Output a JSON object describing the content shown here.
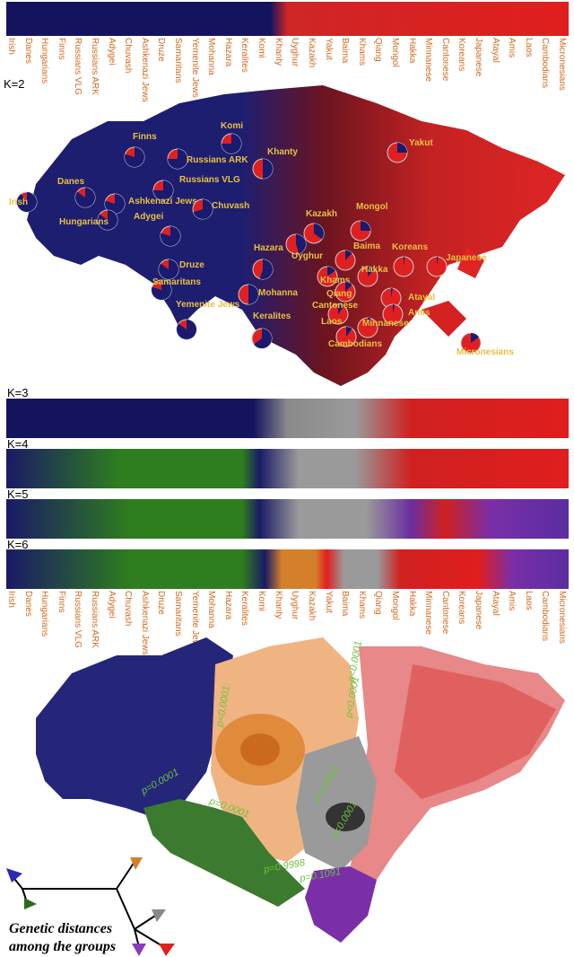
{
  "top_labels": [
    "Irish",
    "Danes",
    "Hungarians",
    "Finns",
    "Russians VLG",
    "Russians ARK",
    "Adygei",
    "Chuvash",
    "Ashkenazi Jews",
    "Druze",
    "Samaritans",
    "Yemenite Jews",
    "Mohanna",
    "Hazara",
    "Keralites",
    "Komi",
    "Khanty",
    "Uyghur",
    "Kazakh",
    "Yakut",
    "Baima",
    "Khams",
    "Qiang",
    "Mongol",
    "Hakka",
    "Minnanese",
    "Cantonese",
    "Koreans",
    "Japanese",
    "Atayal",
    "Amis",
    "Laos",
    "Cambodians",
    "Micronesians"
  ],
  "k_labels": {
    "k2": "K=2",
    "k3": "K=3",
    "k4": "K=4",
    "k5": "K=5",
    "k6": "K=6"
  },
  "pie_labels": [
    {
      "name": "Finns"
    },
    {
      "name": "Komi"
    },
    {
      "name": "Russians ARK"
    },
    {
      "name": "Khanty"
    },
    {
      "name": "Yakut"
    },
    {
      "name": "Danes"
    },
    {
      "name": "Russians VLG"
    },
    {
      "name": "Irish"
    },
    {
      "name": "Ashkenazi Jews"
    },
    {
      "name": "Chuvash"
    },
    {
      "name": "Adygei"
    },
    {
      "name": "Hungarians"
    },
    {
      "name": "Kazakh"
    },
    {
      "name": "Mongol"
    },
    {
      "name": "Uyghur"
    },
    {
      "name": "Hazara"
    },
    {
      "name": "Baima"
    },
    {
      "name": "Koreans"
    },
    {
      "name": "Japanese"
    },
    {
      "name": "Druze"
    },
    {
      "name": "Samaritans"
    },
    {
      "name": "Khams"
    },
    {
      "name": "Hakka"
    },
    {
      "name": "Mohanna"
    },
    {
      "name": "Qiang"
    },
    {
      "name": "Cantonese"
    },
    {
      "name": "Atayal"
    },
    {
      "name": "Laos"
    },
    {
      "name": "Amis"
    },
    {
      "name": "Yemenite Jews"
    },
    {
      "name": "Minnanese"
    },
    {
      "name": "Keralites"
    },
    {
      "name": "Cambodians"
    },
    {
      "name": "Micronesians"
    }
  ],
  "pvalues": [
    "p<0.0001",
    "p<0.0001",
    "p=0.0001",
    "p=0.0001",
    "p<0.0001",
    "p<0.0001",
    "p=0.9998",
    "p=0.1091",
    "p<0.0001"
  ],
  "caption": {
    "line1": "Genetic distances",
    "line2": "among the groups"
  },
  "colors": {
    "blue": "#1a1a6e",
    "red": "#e02020",
    "green": "#2e7d1e",
    "gray": "#9a9a9a",
    "purple": "#7a2ea8",
    "orange": "#d4802a"
  }
}
